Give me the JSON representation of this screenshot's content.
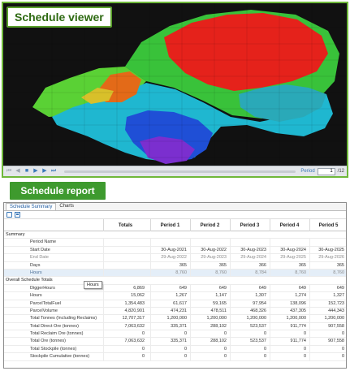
{
  "viewer": {
    "title": "Schedule viewer",
    "player": {
      "period_label": "Period",
      "period_value": "1",
      "period_total": "/12"
    }
  },
  "report": {
    "badge": "Schedule report",
    "tabs": [
      {
        "label": "Schedule Summary",
        "active": true
      },
      {
        "label": "Charts",
        "active": false
      }
    ],
    "columns": [
      "Totals",
      "Period 1",
      "Period 2",
      "Period 3",
      "Period 4",
      "Period 5"
    ],
    "summary_section": "Summary",
    "summary_rows": [
      {
        "label": "Period Name",
        "totals": "",
        "values": [
          "",
          "",
          "",
          "",
          ""
        ]
      },
      {
        "label": "Start Date",
        "totals": "",
        "values": [
          "30-Aug-2021",
          "30-Aug-2022",
          "30-Aug-2023",
          "30-Aug-2024",
          "30-Aug-2025"
        ]
      },
      {
        "label": "End Date",
        "totals": "",
        "values": [
          "29-Aug-2022",
          "29-Aug-2023",
          "29-Aug-2024",
          "29-Aug-2025",
          "29-Aug-2026"
        ],
        "dim": true
      },
      {
        "label": "Days",
        "totals": "",
        "values": [
          "365",
          "365",
          "366",
          "365",
          "365"
        ]
      },
      {
        "label": "Hours",
        "totals": "",
        "values": [
          "8,760",
          "8,760",
          "8,784",
          "8,760",
          "8,760"
        ],
        "highlight": true,
        "dim": true
      }
    ],
    "overall_section": "Overall Schedule Totals",
    "overall_rows": [
      {
        "label": "DiggerHours",
        "totals": "6,869",
        "values": [
          "649",
          "649",
          "649",
          "649",
          "649"
        ]
      },
      {
        "label": "Hours",
        "totals": "15,062",
        "values": [
          "1,267",
          "1,147",
          "1,307",
          "1,274",
          "1,327"
        ]
      },
      {
        "label": "ParcelTotalFuel",
        "totals": "1,354,483",
        "values": [
          "61,617",
          "59,165",
          "97,954",
          "138,096",
          "152,723"
        ]
      },
      {
        "label": "ParcelVolume",
        "totals": "4,820,901",
        "values": [
          "474,231",
          "478,511",
          "468,326",
          "437,305",
          "444,343"
        ]
      },
      {
        "label": "Total Tonnes (Including Reclaims)",
        "totals": "12,707,317",
        "values": [
          "1,200,000",
          "1,200,000",
          "1,200,000",
          "1,200,000",
          "1,200,000"
        ]
      },
      {
        "label": "Total Direct Ore (tonnes)",
        "totals": "7,063,632",
        "values": [
          "335,371",
          "288,102",
          "523,537",
          "911,774",
          "907,558"
        ]
      },
      {
        "label": "Total Reclaim Ore (tonnes)",
        "totals": "0",
        "values": [
          "0",
          "0",
          "0",
          "0",
          "0"
        ]
      },
      {
        "label": "Total Ore (tonnes)",
        "totals": "7,063,632",
        "values": [
          "335,371",
          "288,102",
          "523,537",
          "911,774",
          "907,558"
        ]
      },
      {
        "label": "Total Stockpile (tonnes)",
        "totals": "0",
        "values": [
          "0",
          "0",
          "0",
          "0",
          "0"
        ]
      },
      {
        "label": "Stockpile Cumulative (tonnes)",
        "totals": "0",
        "values": [
          "0",
          "0",
          "0",
          "0",
          "0"
        ]
      }
    ],
    "tooltip": "Hours"
  }
}
